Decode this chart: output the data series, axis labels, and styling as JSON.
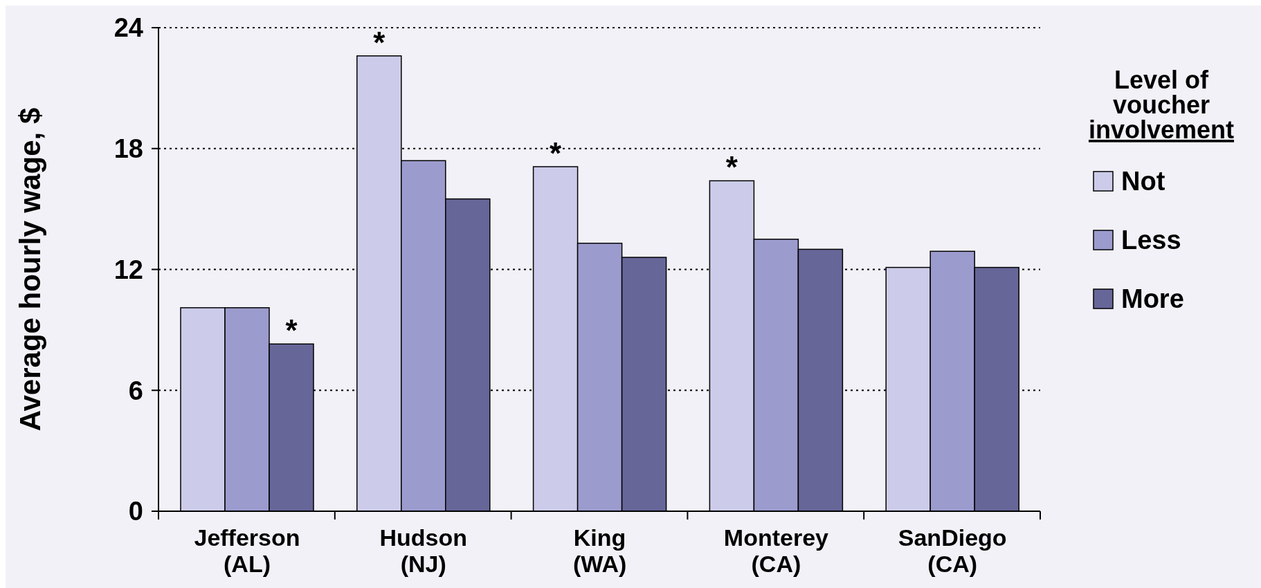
{
  "chart_data": {
    "type": "bar",
    "ylabel": "Average hourly wage, $",
    "legend_title": "Level of voucher involvement",
    "categories": [
      "Jefferson (AL)",
      "Hudson (NJ)",
      "King (WA)",
      "Monterey (CA)",
      "SanDiego (CA)"
    ],
    "series": [
      {
        "name": "Not",
        "color": "#ccccea",
        "values": [
          10.1,
          22.6,
          17.1,
          16.4,
          12.1
        ]
      },
      {
        "name": "Less",
        "color": "#9b9bce",
        "values": [
          10.1,
          17.4,
          13.3,
          13.5,
          12.9
        ]
      },
      {
        "name": "More",
        "color": "#666699",
        "values": [
          8.3,
          15.5,
          12.6,
          13.0,
          12.1
        ]
      }
    ],
    "ylim": [
      0,
      24
    ],
    "yticks": [
      0,
      6,
      12,
      18,
      24
    ],
    "grid": "y",
    "legend": "right",
    "annotations": [
      "*",
      "*",
      "*",
      "*"
    ]
  }
}
